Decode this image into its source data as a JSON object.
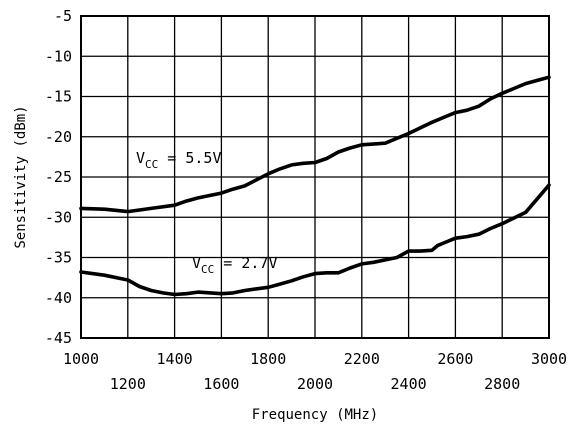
{
  "chart_data": {
    "type": "line",
    "title": "",
    "xlabel": "Frequency (MHz)",
    "ylabel": "Sensitivity (dBm)",
    "xlim": [
      1000,
      3000
    ],
    "ylim": [
      -45,
      -5
    ],
    "grid": true,
    "x_ticks_top_row": [
      "1000",
      "1400",
      "1800",
      "2200",
      "2600",
      "3000"
    ],
    "x_ticks_bottom_row": [
      "1200",
      "1600",
      "2000",
      "2400",
      "2800"
    ],
    "y_ticks": [
      "-5",
      "-10",
      "-15",
      "-20",
      "-25",
      "-30",
      "-35",
      "-40",
      "-45"
    ],
    "series": [
      {
        "label_main": "V",
        "label_sub": "CC",
        "label_value": " = 5.5V",
        "x": [
          1000,
          1100,
          1200,
          1300,
          1400,
          1450,
          1500,
          1600,
          1650,
          1700,
          1800,
          1850,
          1900,
          1950,
          2000,
          2050,
          2100,
          2150,
          2200,
          2300,
          2400,
          2450,
          2500,
          2550,
          2600,
          2650,
          2700,
          2750,
          2800,
          2850,
          2900,
          2950,
          3000
        ],
        "y": [
          -28.9,
          -29.0,
          -29.3,
          -28.9,
          -28.5,
          -28.0,
          -27.6,
          -27.0,
          -26.5,
          -26.1,
          -24.6,
          -24.0,
          -23.5,
          -23.3,
          -23.2,
          -22.7,
          -21.9,
          -21.4,
          -21.0,
          -20.8,
          -19.6,
          -18.9,
          -18.2,
          -17.6,
          -17.0,
          -16.7,
          -16.2,
          -15.3,
          -14.6,
          -14.0,
          -13.4,
          -13.0,
          -12.6
        ]
      },
      {
        "label_main": "V",
        "label_sub": "CC",
        "label_value": " = 2.7V",
        "x": [
          1000,
          1100,
          1200,
          1250,
          1300,
          1350,
          1400,
          1450,
          1500,
          1600,
          1650,
          1700,
          1800,
          1850,
          1900,
          1950,
          2000,
          2050,
          2100,
          2150,
          2200,
          2250,
          2300,
          2350,
          2400,
          2450,
          2500,
          2525,
          2550,
          2600,
          2650,
          2700,
          2750,
          2800,
          2900,
          3000
        ],
        "y": [
          -36.8,
          -37.2,
          -37.8,
          -38.6,
          -39.1,
          -39.4,
          -39.6,
          -39.5,
          -39.3,
          -39.5,
          -39.4,
          -39.1,
          -38.7,
          -38.3,
          -37.9,
          -37.4,
          -37.0,
          -36.9,
          -36.9,
          -36.3,
          -35.8,
          -35.6,
          -35.3,
          -35.0,
          -34.2,
          -34.2,
          -34.1,
          -33.5,
          -33.2,
          -32.6,
          -32.4,
          -32.1,
          -31.4,
          -30.8,
          -29.4,
          -26.0
        ]
      }
    ]
  }
}
